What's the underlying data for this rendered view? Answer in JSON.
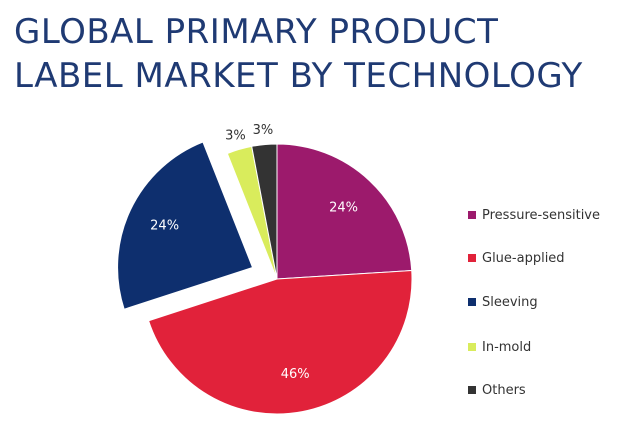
{
  "title_lines": [
    "GLOBAL PRIMARY PRODUCT",
    "LABEL MARKET BY TECHNOLOGY"
  ],
  "colors": {
    "title": "#1f3a73",
    "label_light": "#ffffff",
    "label_dark": "#333333"
  },
  "chart_data": {
    "type": "pie",
    "title": "GLOBAL PRIMARY PRODUCT LABEL MARKET BY TECHNOLOGY",
    "legend_position": "right",
    "start": "12 o'clock",
    "direction": "clockwise",
    "slices": [
      {
        "name": "Pressure-sensitive",
        "value": 24,
        "label": "24%",
        "color": "#9c1a6c",
        "exploded": false,
        "label_style": "light"
      },
      {
        "name": "Glue-applied",
        "value": 46,
        "label": "46%",
        "color": "#e1223a",
        "exploded": false,
        "label_style": "light"
      },
      {
        "name": "Sleeving",
        "value": 24,
        "label": "24%",
        "color": "#0e2f6e",
        "exploded": true,
        "label_style": "light"
      },
      {
        "name": "In-mold",
        "value": 3,
        "label": "3%",
        "color": "#d9ec5c",
        "exploded": false,
        "label_style": "dark_outside"
      },
      {
        "name": "Others",
        "value": 3,
        "label": "3%",
        "color": "#333333",
        "exploded": false,
        "label_style": "dark_outside"
      }
    ]
  }
}
